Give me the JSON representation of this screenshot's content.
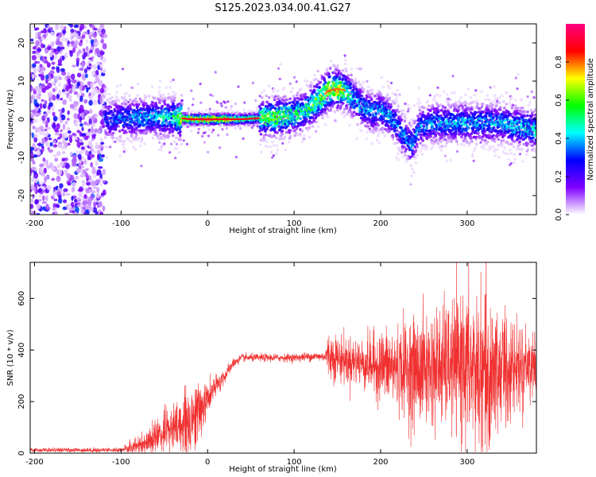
{
  "title": "S125.2023.034.00.41.G27",
  "chart_data": [
    {
      "type": "heatmap",
      "xlabel": "Height of straight line (km)",
      "ylabel": "Frequency (Hz)",
      "xlim": [
        -205,
        380
      ],
      "ylim": [
        -25,
        25
      ],
      "xticks": [
        -200,
        -100,
        0,
        100,
        200,
        300
      ],
      "yticks": [
        -20,
        -10,
        0,
        10,
        20
      ],
      "colorbar": {
        "label": "Normalized spectral amplitude",
        "range": [
          0,
          1
        ],
        "ticks": [
          "0.0",
          "0.2",
          "0.4",
          "0.6",
          "0.8"
        ],
        "tick_values": [
          0,
          0.2,
          0.4,
          0.6,
          0.8
        ],
        "colors": [
          "#ffffff",
          "#8000ff",
          "#0000ff",
          "#00ffff",
          "#00ff00",
          "#ffff00",
          "#ff0000",
          "#ff0080"
        ]
      },
      "noise_region_x": [
        -205,
        -118
      ],
      "ridge": {
        "x": [
          -118,
          -100,
          -80,
          -60,
          -40,
          -20,
          0,
          20,
          40,
          60,
          80,
          100,
          110,
          120,
          130,
          140,
          150,
          160,
          170,
          180,
          190,
          200,
          210,
          220,
          230,
          236,
          245,
          260,
          280,
          300,
          320,
          340,
          360,
          380
        ],
        "freq": [
          0,
          0,
          0.5,
          0.5,
          0.5,
          0,
          0,
          0,
          0,
          0.3,
          0.6,
          1,
          2,
          3.5,
          5.5,
          7.5,
          8,
          7.5,
          5,
          3,
          2,
          2,
          1,
          -2,
          -5,
          -7,
          -2,
          -1,
          -1,
          -1,
          -1,
          -1,
          -2,
          -3
        ],
        "amplitude": [
          0.35,
          0.4,
          0.45,
          0.45,
          0.55,
          0.95,
          1,
          0.95,
          0.75,
          0.65,
          0.7,
          0.6,
          0.55,
          0.65,
          0.75,
          0.85,
          0.85,
          0.65,
          0.5,
          0.45,
          0.45,
          0.45,
          0.45,
          0.4,
          0.4,
          0.45,
          0.4,
          0.45,
          0.45,
          0.45,
          0.45,
          0.45,
          0.5,
          0.5
        ]
      }
    },
    {
      "type": "line",
      "xlabel": "Height of straight line (km)",
      "ylabel": "SNR (10 * v/v)",
      "xlim": [
        -205,
        380
      ],
      "ylim": [
        0,
        740
      ],
      "xticks": [
        -200,
        -100,
        0,
        100,
        200,
        300
      ],
      "yticks": [
        0,
        200,
        400,
        600
      ],
      "series": [
        {
          "color": "#f03030",
          "envelope_x": [
            -205,
            -100,
            -90,
            -70,
            -50,
            -30,
            -20,
            -10,
            0,
            10,
            20,
            30,
            40,
            60,
            80,
            100,
            120,
            135,
            140,
            160,
            180,
            200,
            220,
            240,
            260,
            280,
            300,
            320,
            340,
            360,
            380
          ],
          "mean": [
            12,
            12,
            20,
            45,
            80,
            110,
            130,
            160,
            210,
            260,
            300,
            350,
            370,
            370,
            370,
            370,
            375,
            375,
            380,
            360,
            350,
            340,
            330,
            320,
            330,
            340,
            330,
            320,
            330,
            340,
            350
          ],
          "spread": [
            5,
            6,
            15,
            35,
            55,
            70,
            90,
            80,
            40,
            30,
            20,
            12,
            10,
            10,
            10,
            10,
            12,
            12,
            60,
            60,
            65,
            90,
            110,
            140,
            150,
            160,
            200,
            230,
            170,
            100,
            80
          ]
        }
      ]
    }
  ]
}
